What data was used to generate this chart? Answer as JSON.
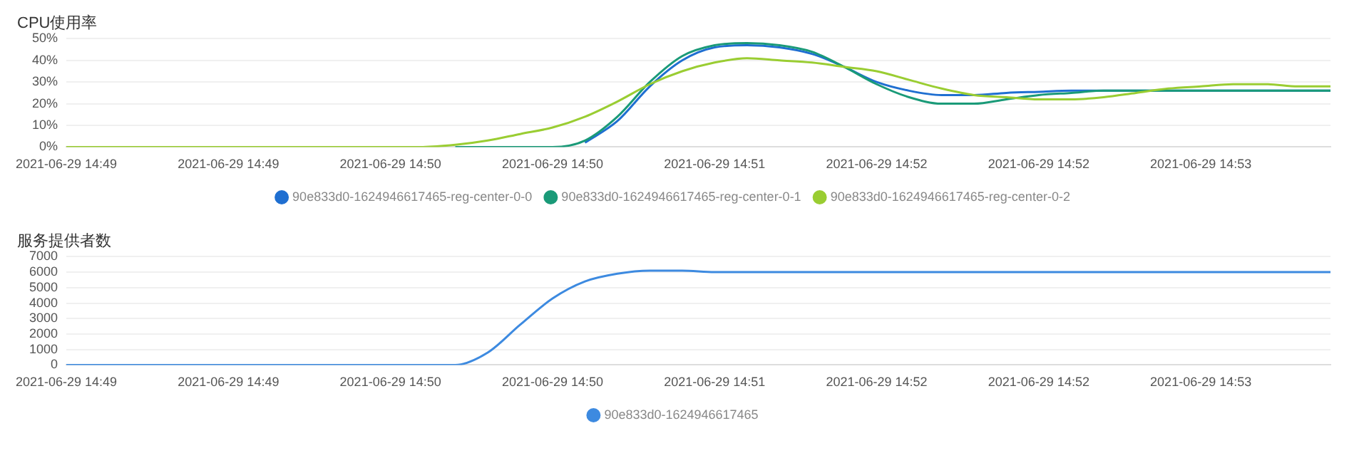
{
  "chart_data": [
    {
      "type": "line",
      "title": "CPU使用率",
      "categories": [
        "2021-06-29 14:49",
        null,
        null,
        null,
        null,
        "2021-06-29 14:49",
        null,
        null,
        null,
        null,
        "2021-06-29 14:50",
        null,
        null,
        null,
        null,
        "2021-06-29 14:50",
        null,
        null,
        null,
        null,
        "2021-06-29 14:51",
        null,
        null,
        null,
        null,
        "2021-06-29 14:52",
        null,
        null,
        null,
        null,
        "2021-06-29 14:52",
        null,
        null,
        null,
        null,
        "2021-06-29 14:53",
        null,
        null,
        null,
        null
      ],
      "series": [
        {
          "name": "90e833d0-1624946617465-reg-center-0-0",
          "color": "#1f6fd1",
          "values": [
            null,
            null,
            null,
            null,
            null,
            null,
            null,
            null,
            null,
            null,
            null,
            null,
            null,
            null,
            null,
            null,
            2,
            12,
            28,
            40,
            46,
            47,
            46,
            43,
            37,
            30,
            26,
            24,
            24,
            25,
            25.5,
            26,
            26,
            26,
            26,
            26,
            26,
            26,
            26,
            26
          ]
        },
        {
          "name": "90e833d0-1624946617465-reg-center-0-1",
          "color": "#1a9a78",
          "values": [
            null,
            null,
            null,
            null,
            null,
            null,
            null,
            null,
            null,
            null,
            null,
            null,
            0,
            0,
            0,
            0,
            3,
            14,
            30,
            42,
            47,
            48,
            47,
            44,
            37,
            29,
            23,
            20,
            20,
            22,
            24,
            25,
            26,
            26,
            26,
            26,
            26,
            26,
            26,
            26
          ]
        },
        {
          "name": "90e833d0-1624946617465-reg-center-0-2",
          "color": "#9acd32",
          "values": [
            0,
            0,
            0,
            0,
            0,
            0,
            0,
            0,
            0,
            0,
            0,
            0,
            1,
            3,
            6,
            9,
            14,
            21,
            29,
            35,
            39,
            41,
            40,
            39,
            37,
            35,
            31,
            27,
            24,
            23,
            22,
            22,
            23,
            25,
            27,
            28,
            29,
            29,
            28,
            28
          ]
        }
      ],
      "ylim": [
        0,
        50
      ],
      "yticks": [
        {
          "value": 0,
          "label": "0%"
        },
        {
          "value": 10,
          "label": "10%"
        },
        {
          "value": 20,
          "label": "20%"
        },
        {
          "value": 30,
          "label": "30%"
        },
        {
          "value": 40,
          "label": "40%"
        },
        {
          "value": 50,
          "label": "50%"
        }
      ],
      "grid": "y",
      "legend": "bottom",
      "marker": "none"
    },
    {
      "type": "line",
      "title": "服务提供者数",
      "categories": [
        "2021-06-29 14:49",
        null,
        null,
        null,
        null,
        "2021-06-29 14:49",
        null,
        null,
        null,
        null,
        "2021-06-29 14:50",
        null,
        null,
        null,
        null,
        "2021-06-29 14:50",
        null,
        null,
        null,
        null,
        "2021-06-29 14:51",
        null,
        null,
        null,
        null,
        "2021-06-29 14:52",
        null,
        null,
        null,
        null,
        "2021-06-29 14:52",
        null,
        null,
        null,
        null,
        "2021-06-29 14:53",
        null,
        null,
        null,
        null
      ],
      "series": [
        {
          "name": "90e833d0-1624946617465",
          "color": "#3d8ae0",
          "values": [
            0,
            0,
            0,
            0,
            0,
            0,
            0,
            0,
            0,
            0,
            0,
            0,
            0,
            800,
            2600,
            4300,
            5400,
            5900,
            6100,
            6100,
            6000,
            6000,
            6000,
            6000,
            6000,
            6000,
            6000,
            6000,
            6000,
            6000,
            6000,
            6000,
            6000,
            6000,
            6000,
            6000,
            6000,
            6000,
            6000,
            6000
          ]
        }
      ],
      "ylim": [
        0,
        7000
      ],
      "yticks": [
        0,
        1000,
        2000,
        3000,
        4000,
        5000,
        6000,
        7000
      ],
      "grid": "y",
      "legend": "bottom",
      "marker": "none"
    }
  ]
}
